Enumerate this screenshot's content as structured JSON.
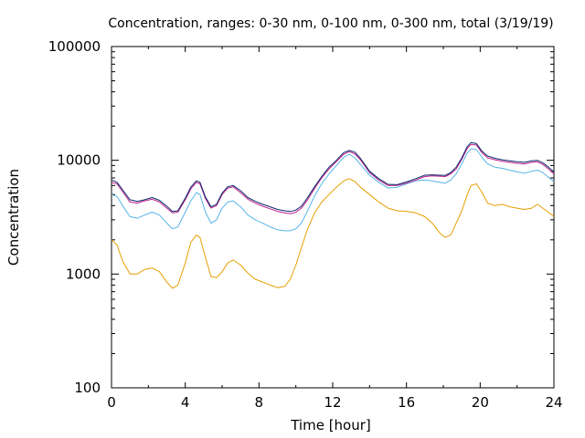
{
  "chart_data": {
    "type": "line",
    "title": "Concentration, ranges: 0-30 nm, 0-100 nm, 0-300 nm, total (3/19/19)",
    "xlabel": "Time [hour]",
    "ylabel": "Concentration",
    "xlim": [
      0,
      24
    ],
    "ylim": [
      100,
      100000
    ],
    "yscale": "log",
    "x_ticks": [
      0,
      4,
      8,
      12,
      16,
      20,
      24
    ],
    "x_tick_labels": [
      "0",
      "4",
      "8",
      "12",
      "16",
      "20",
      "24"
    ],
    "y_ticks": [
      100,
      1000,
      10000,
      100000
    ],
    "y_tick_labels": [
      "100",
      "1000",
      "10000",
      "100000"
    ],
    "grid": false,
    "legend": "none",
    "series": [
      {
        "color": "#e69f00",
        "x": [
          0,
          0.3,
          0.6,
          1,
          1.4,
          1.8,
          2.2,
          2.6,
          3,
          3.3,
          3.6,
          4,
          4.3,
          4.6,
          4.8,
          5.1,
          5.4,
          5.7,
          6,
          6.3,
          6.6,
          7,
          7.4,
          7.8,
          8.2,
          8.6,
          9,
          9.4,
          9.7,
          10,
          10.3,
          10.6,
          11,
          11.4,
          11.8,
          12.2,
          12.6,
          12.9,
          13.2,
          13.5,
          14,
          14.5,
          15,
          15.5,
          16,
          16.5,
          17,
          17.4,
          17.8,
          18.1,
          18.4,
          18.7,
          19,
          19.3,
          19.5,
          19.8,
          20.1,
          20.4,
          20.8,
          21.2,
          21.6,
          22,
          22.4,
          22.8,
          23.1,
          23.4,
          23.7,
          24
        ],
        "y": [
          2000,
          1800,
          1300,
          1000,
          1000,
          1100,
          1130,
          1050,
          850,
          750,
          800,
          1250,
          1900,
          2200,
          2100,
          1400,
          950,
          930,
          1050,
          1250,
          1330,
          1200,
          1020,
          900,
          850,
          800,
          760,
          780,
          900,
          1200,
          1700,
          2400,
          3400,
          4300,
          5000,
          5800,
          6600,
          6900,
          6500,
          5800,
          5000,
          4300,
          3800,
          3600,
          3550,
          3450,
          3200,
          2800,
          2300,
          2100,
          2200,
          2800,
          3600,
          5000,
          6000,
          6200,
          5200,
          4200,
          4000,
          4100,
          3900,
          3800,
          3700,
          3800,
          4100,
          3800,
          3500,
          3200
        ]
      },
      {
        "color": "#56b4e9",
        "x": [
          0,
          0.3,
          0.6,
          1,
          1.4,
          1.8,
          2.2,
          2.6,
          3,
          3.3,
          3.6,
          4,
          4.3,
          4.6,
          4.8,
          5.1,
          5.4,
          5.7,
          6,
          6.3,
          6.6,
          7,
          7.4,
          7.8,
          8.2,
          8.6,
          9,
          9.4,
          9.7,
          10,
          10.3,
          10.6,
          11,
          11.4,
          11.8,
          12.2,
          12.6,
          12.9,
          13.2,
          13.5,
          14,
          14.5,
          15,
          15.5,
          16,
          16.5,
          17,
          17.4,
          17.8,
          18.1,
          18.4,
          18.7,
          19,
          19.3,
          19.5,
          19.8,
          20.1,
          20.4,
          20.8,
          21.2,
          21.6,
          22,
          22.4,
          22.8,
          23.1,
          23.4,
          23.7,
          24
        ],
        "y": [
          5000,
          4800,
          4000,
          3200,
          3100,
          3300,
          3500,
          3300,
          2800,
          2500,
          2600,
          3500,
          4400,
          5200,
          5000,
          3500,
          2800,
          3000,
          3800,
          4300,
          4400,
          3900,
          3300,
          3000,
          2800,
          2600,
          2450,
          2400,
          2400,
          2500,
          2800,
          3500,
          4800,
          6200,
          7600,
          9000,
          10600,
          11300,
          10500,
          9200,
          7400,
          6400,
          5700,
          5800,
          6200,
          6600,
          6700,
          6600,
          6400,
          6300,
          6700,
          7600,
          9300,
          11600,
          12600,
          12400,
          10600,
          9300,
          8700,
          8500,
          8200,
          7900,
          7700,
          8000,
          8200,
          7800,
          7100,
          6500
        ]
      },
      {
        "color": "#c0208a",
        "x": [
          0,
          0.3,
          0.6,
          1,
          1.4,
          1.8,
          2.2,
          2.6,
          3,
          3.3,
          3.6,
          4,
          4.3,
          4.6,
          4.8,
          5.1,
          5.4,
          5.7,
          6,
          6.3,
          6.6,
          7,
          7.4,
          7.8,
          8.2,
          8.6,
          9,
          9.4,
          9.7,
          10,
          10.3,
          10.6,
          11,
          11.4,
          11.8,
          12.2,
          12.6,
          12.9,
          13.2,
          13.5,
          14,
          14.5,
          15,
          15.5,
          16,
          16.5,
          17,
          17.4,
          17.8,
          18.1,
          18.4,
          18.7,
          19,
          19.3,
          19.5,
          19.8,
          20.1,
          20.4,
          20.8,
          21.2,
          21.6,
          22,
          22.4,
          22.8,
          23.1,
          23.4,
          23.7,
          24
        ],
        "y": [
          6400,
          6200,
          5300,
          4300,
          4200,
          4400,
          4550,
          4300,
          3800,
          3450,
          3500,
          4500,
          5600,
          6400,
          6200,
          4600,
          3800,
          4000,
          5000,
          5700,
          5850,
          5200,
          4550,
          4200,
          3950,
          3750,
          3550,
          3450,
          3400,
          3500,
          3800,
          4400,
          5600,
          7000,
          8400,
          9700,
          11300,
          11900,
          11400,
          10100,
          7800,
          6700,
          6000,
          6000,
          6300,
          6700,
          7200,
          7300,
          7250,
          7200,
          7600,
          8400,
          10200,
          12700,
          13800,
          13600,
          11600,
          10500,
          10100,
          9800,
          9600,
          9400,
          9300,
          9600,
          9700,
          9200,
          8400,
          7600
        ]
      },
      {
        "color": "#0a2a6e",
        "x": [
          0,
          0.3,
          0.6,
          1,
          1.4,
          1.8,
          2.2,
          2.6,
          3,
          3.3,
          3.6,
          4,
          4.3,
          4.6,
          4.8,
          5.1,
          5.4,
          5.7,
          6,
          6.3,
          6.6,
          7,
          7.4,
          7.8,
          8.2,
          8.6,
          9,
          9.4,
          9.7,
          10,
          10.3,
          10.6,
          11,
          11.4,
          11.8,
          12.2,
          12.6,
          12.9,
          13.2,
          13.5,
          14,
          14.5,
          15,
          15.5,
          16,
          16.5,
          17,
          17.4,
          17.8,
          18.1,
          18.4,
          18.7,
          19,
          19.3,
          19.5,
          19.8,
          20.1,
          20.4,
          20.8,
          21.2,
          21.6,
          22,
          22.4,
          22.8,
          23.1,
          23.4,
          23.7,
          24
        ],
        "y": [
          6700,
          6400,
          5500,
          4500,
          4350,
          4500,
          4700,
          4450,
          3950,
          3550,
          3600,
          4650,
          5800,
          6600,
          6400,
          4750,
          3900,
          4100,
          5150,
          5850,
          6000,
          5400,
          4700,
          4350,
          4100,
          3900,
          3700,
          3600,
          3550,
          3650,
          3950,
          4600,
          5800,
          7200,
          8700,
          10000,
          11700,
          12200,
          11800,
          10400,
          8000,
          6900,
          6150,
          6100,
          6450,
          6900,
          7400,
          7450,
          7400,
          7350,
          7800,
          8700,
          10500,
          13200,
          14300,
          14000,
          12000,
          10900,
          10400,
          10100,
          9900,
          9700,
          9600,
          9900,
          10000,
          9500,
          8700,
          7900
        ]
      }
    ]
  }
}
